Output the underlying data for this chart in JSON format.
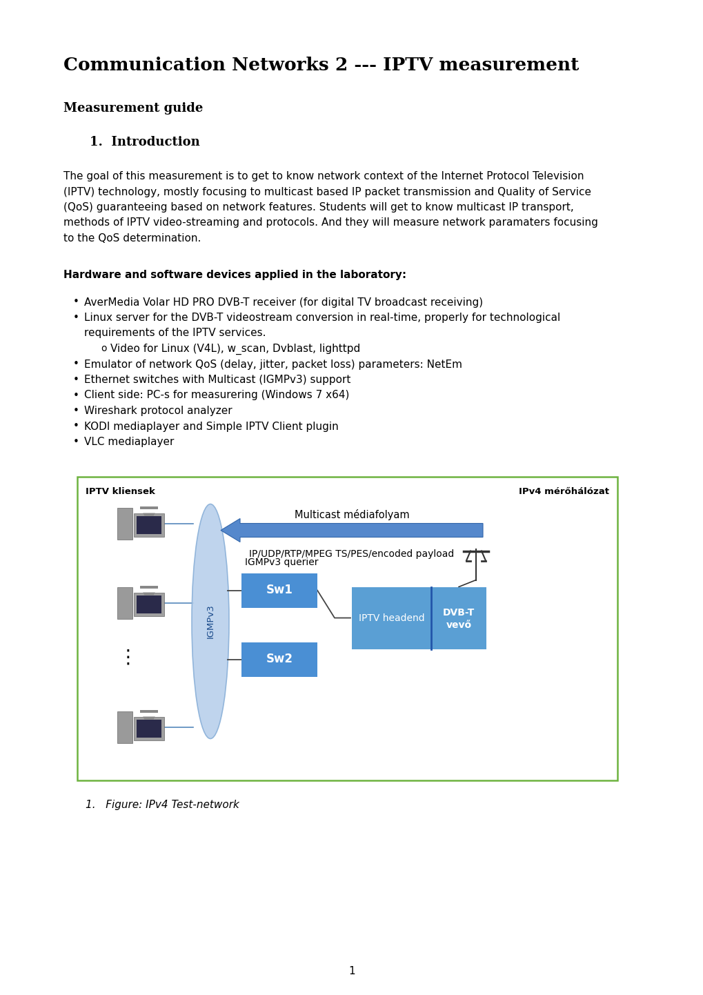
{
  "title": "Communication Networks 2 --- IPTV measurement",
  "subtitle": "Measurement guide",
  "section": "1.  Introduction",
  "para_lines": [
    "The goal of this measurement is to get to know network context of the Internet Protocol Television",
    "(IPTV) technology, mostly focusing to multicast based IP packet transmission and Quality of Service",
    "(QoS) guaranteeing based on network features. Students will get to know multicast IP transport,",
    "methods of IPTV video-streaming and protocols. And they will measure network paramaters focusing",
    "to the QoS determination."
  ],
  "hw_label": "Hardware and software devices applied in the laboratory:",
  "bullet1": "AverMedia Volar HD PRO DVB-T receiver (for digital TV broadcast receiving)",
  "bullet2a": "Linux server for the DVB-T videostream conversion in real-time, properly for technological",
  "bullet2b": "requirements of the IPTV services.",
  "sub_bullet": "Video for Linux (V4L), w_scan, Dvblast, lighttpd",
  "bullet3": "Emulator of network QoS (delay, jitter, packet loss) parameters: NetEm",
  "bullet4": "Ethernet switches with Multicast (IGMPv3) support",
  "bullet5": "Client side: PC-s for measurering (Windows 7 x64)",
  "bullet6": "Wireshark protocol analyzer",
  "bullet7": "KODI mediaplayer and Simple IPTV Client plugin",
  "bullet8": "VLC mediaplayer",
  "diag_label_left": "IPTV kliensek",
  "diag_label_right": "IPv4 mérőhálózat",
  "multicast_label": "Multicast médiafolyam",
  "payload_label": "IP/UDP/RTP/MPEG TS/PES/encoded payload",
  "igmp_querier": "IGMPv3 querier",
  "igmpv3_text": "IGMPv3",
  "sw1_label": "Sw1",
  "sw2_label": "Sw2",
  "headend_label": "IPTV headend",
  "dvbt_line1": "DVB-T",
  "dvbt_line2": "vevő",
  "figure_caption": "1.   Figure: IPv4 Test-network",
  "page_number": "1",
  "bg_color": "#ffffff",
  "text_color": "#000000",
  "diagram_border_color": "#6db33f",
  "ellipse_fill": "#b8d0ec",
  "ellipse_edge": "#8ab0d8",
  "sw_color": "#4a8fd4",
  "headend_color": "#5a9fd4",
  "dvbt_color": "#5a9fd4",
  "arrow_color": "#5588cc",
  "arrow_edge": "#3366aa"
}
